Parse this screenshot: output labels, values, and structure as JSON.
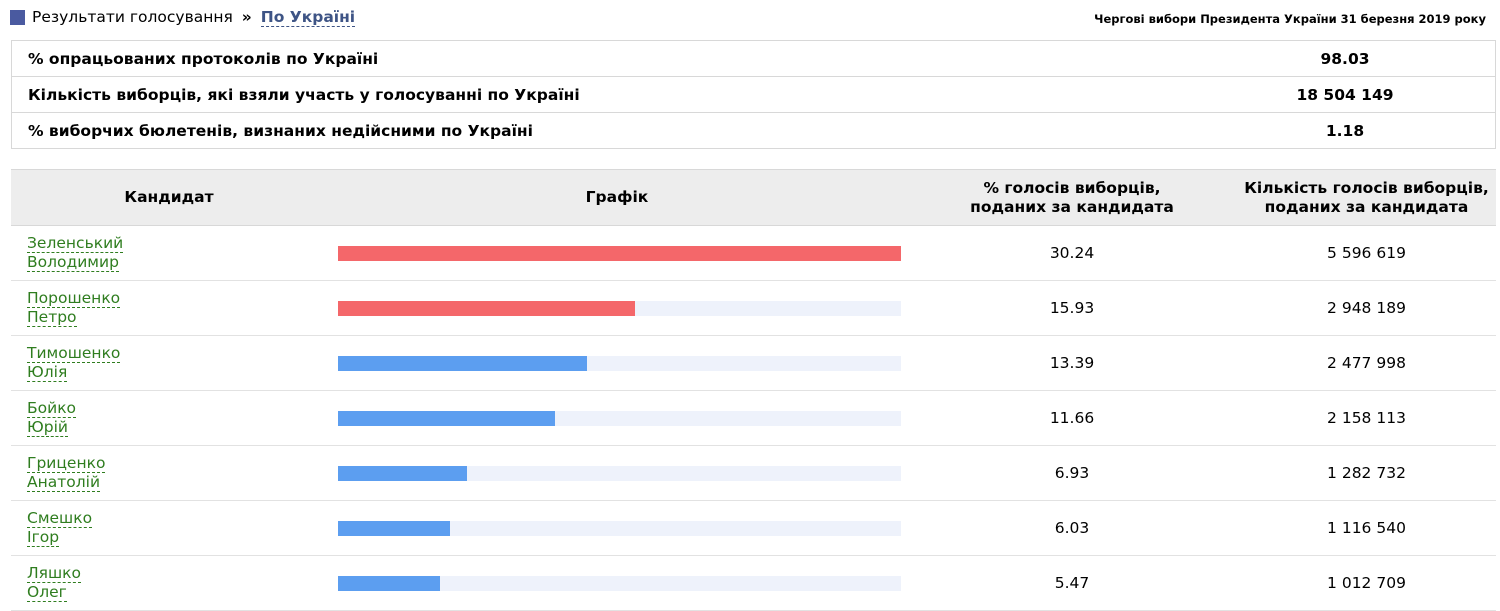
{
  "header": {
    "breadcrumb_title": "Результати голосування",
    "breadcrumb_separator": "»",
    "breadcrumb_link": "По Україні",
    "election_name": "Чергові вибори Президента України 31 березня 2019 року"
  },
  "summary": [
    {
      "label": "% опрацьованих протоколів по Україні",
      "value": "98.03"
    },
    {
      "label": "Кількість виборців, які взяли участь у голосуванні по Україні",
      "value": "18 504 149"
    },
    {
      "label": "% виборчих бюлетенів, визнаних недійсними по Україні",
      "value": "1.18"
    }
  ],
  "table": {
    "headers": {
      "candidate": "Кандидат",
      "chart": "Графік",
      "percent_line1": "% голосів виборців,",
      "percent_line2": "поданих за кандидата",
      "count_line1": "Кількість голосів виборців,",
      "count_line2": "поданих за кандидата"
    },
    "rows": [
      {
        "surname": "Зеленський",
        "firstname": "Володимир",
        "percent": "30.24",
        "votes": "5 596 619",
        "bar_fraction": 1.0,
        "bar_color": "#f4676a"
      },
      {
        "surname": "Порошенко",
        "firstname": "Петро",
        "percent": "15.93",
        "votes": "2 948 189",
        "bar_fraction": 0.527,
        "bar_color": "#f4676a"
      },
      {
        "surname": "Тимошенко",
        "firstname": "Юлія",
        "percent": "13.39",
        "votes": "2 477 998",
        "bar_fraction": 0.443,
        "bar_color": "#5c9ef0"
      },
      {
        "surname": "Бойко",
        "firstname": "Юрій",
        "percent": "11.66",
        "votes": "2 158 113",
        "bar_fraction": 0.386,
        "bar_color": "#5c9ef0"
      },
      {
        "surname": "Гриценко",
        "firstname": "Анатолій",
        "percent": "6.93",
        "votes": "1 282 732",
        "bar_fraction": 0.229,
        "bar_color": "#5c9ef0"
      },
      {
        "surname": "Смешко",
        "firstname": "Ігор",
        "percent": "6.03",
        "votes": "1 116 540",
        "bar_fraction": 0.199,
        "bar_color": "#5c9ef0"
      },
      {
        "surname": "Ляшко",
        "firstname": "Олег",
        "percent": "5.47",
        "votes": "1 012 709",
        "bar_fraction": 0.181,
        "bar_color": "#5c9ef0"
      }
    ]
  }
}
